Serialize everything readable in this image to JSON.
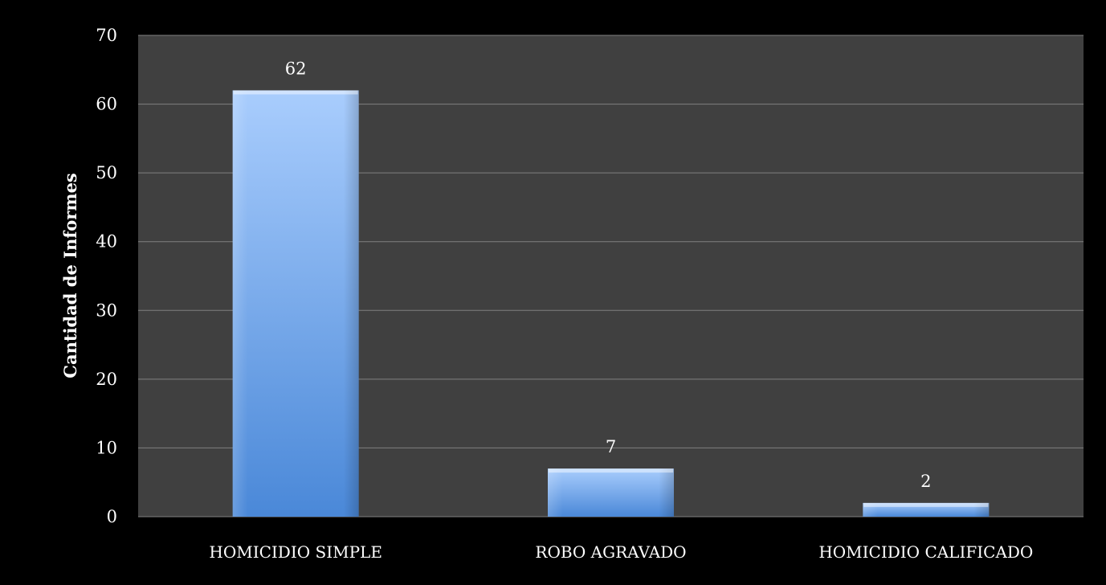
{
  "chart_data": {
    "type": "bar",
    "categories": [
      "HOMICIDIO SIMPLE",
      "ROBO AGRAVADO",
      "HOMICIDIO CALIFICADO"
    ],
    "values": [
      62,
      7,
      2
    ],
    "data_labels": [
      "62",
      "7",
      "2"
    ],
    "title": "",
    "xlabel": "",
    "ylabel": "Cantidad de Informes",
    "ylim": [
      0,
      70
    ],
    "yticks": [
      0,
      10,
      20,
      30,
      40,
      50,
      60,
      70
    ],
    "grid": true,
    "legend": "none",
    "colors": {
      "background": "#000000",
      "plot_area": "#404040",
      "gridline": "#7f7f7f",
      "bar_top": "#a9cdfd",
      "bar_bottom": "#4a88d8",
      "text": "#ffffff"
    }
  }
}
